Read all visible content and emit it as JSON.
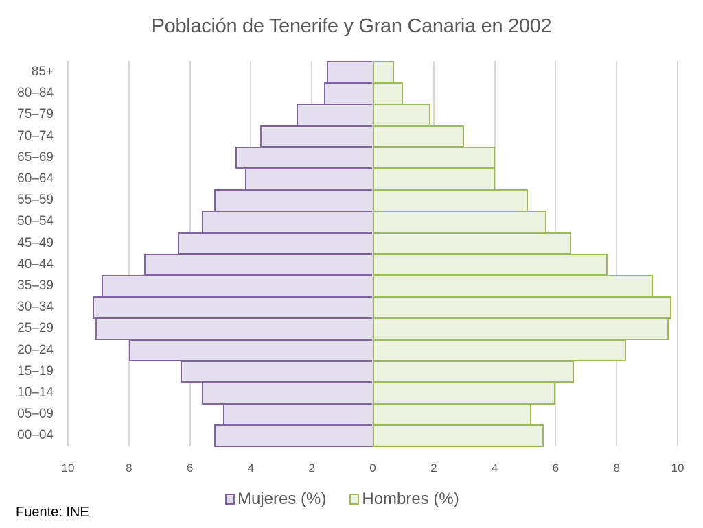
{
  "chart_data": {
    "type": "bar",
    "orientation": "horizontal",
    "subtype": "population-pyramid",
    "title": "Población de Tenerife y Gran Canaria en 2002",
    "xlabel": "",
    "ylabel": "",
    "categories": [
      "85+",
      "80–84",
      "75–79",
      "70–74",
      "65–69",
      "60–64",
      "55–59",
      "50–54",
      "45–49",
      "40–44",
      "35–39",
      "30–34",
      "25–29",
      "20–24",
      "15–19",
      "10–14",
      "05–09",
      "00–04"
    ],
    "series": [
      {
        "name": "Mujeres (%)",
        "side": "left",
        "fill": "#e4dfec",
        "stroke": "#8064a2",
        "values": [
          1.5,
          1.6,
          2.5,
          3.7,
          4.5,
          4.2,
          5.2,
          5.6,
          6.4,
          7.5,
          8.9,
          9.2,
          9.1,
          8.0,
          6.3,
          5.6,
          4.9,
          5.2
        ]
      },
      {
        "name": "Hombres (%)",
        "side": "right",
        "fill": "#ebf1de",
        "stroke": "#9bbb59",
        "values": [
          0.7,
          1.0,
          1.9,
          3.0,
          4.0,
          4.0,
          5.1,
          5.7,
          6.5,
          7.7,
          9.2,
          9.8,
          9.7,
          8.3,
          6.6,
          6.0,
          5.2,
          5.6
        ]
      }
    ],
    "xticks_left": [
      "10",
      "8",
      "6",
      "4",
      "2"
    ],
    "xticks_center": "0",
    "xticks_right": [
      "2",
      "4",
      "6",
      "8",
      "10"
    ],
    "xlim": [
      -10,
      10
    ],
    "grid": true,
    "legend_position": "bottom"
  },
  "legend": {
    "items": [
      {
        "label": "Mujeres (%)",
        "fill": "#e4dfec",
        "stroke": "#8064a2"
      },
      {
        "label": "Hombres (%)",
        "fill": "#ebf1de",
        "stroke": "#9bbb59"
      }
    ]
  },
  "source": "Fuente: INE"
}
